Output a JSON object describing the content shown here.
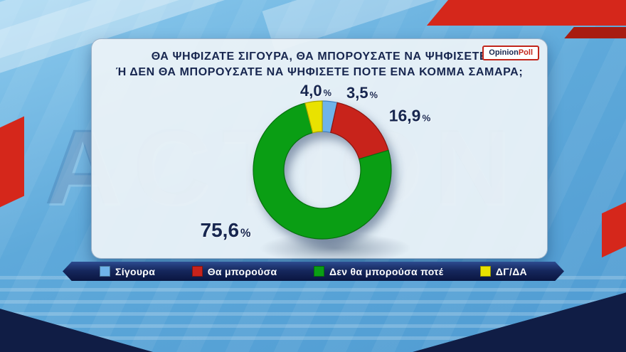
{
  "background": {
    "watermark": "ACTION",
    "base_color": "#5ea9da",
    "accent_red": "#d5271b",
    "accent_navy": "#101d45"
  },
  "panel": {
    "title_line1": "ΘΑ ΨΗΦΙΖΑΤΕ ΣΙΓΟΥΡΑ, ΘΑ ΜΠΟΡΟΥΣΑΤΕ ΝΑ ΨΗΦΙΣΕΤΕ",
    "title_line2": "Ή ΔΕΝ ΘΑ ΜΠΟΡΟΥΣΑΤΕ ΝΑ ΨΗΦΙΣΕΤΕ ΠΟΤΕ ΕΝΑ ΚΟΜΜΑ ΣΑΜΑΡΑ;",
    "logo": {
      "part1": "Opinion",
      "part2": "Poll"
    }
  },
  "chart_data": {
    "type": "pie",
    "subtype": "donut",
    "title": "ΘΑ ΨΗΦΙΖΑΤΕ ΣΙΓΟΥΡΑ, ΘΑ ΜΠΟΡΟΥΣΑΤΕ ΝΑ ΨΗΦΙΣΕΤΕ Ή ΔΕΝ ΘΑ ΜΠΟΡΟΥΣΑΤΕ ΝΑ ΨΗΦΙΣΕΤΕ ΠΟΤΕ ΕΝΑ ΚΟΜΜΑ ΣΑΜΑΡΑ;",
    "start_angle_deg": 0,
    "direction": "clockwise",
    "legend_position": "bottom",
    "slices": [
      {
        "label": "Σίγουρα",
        "value": 3.5,
        "display": "3,5",
        "unit": "%",
        "color": "#6fb3e9",
        "edge": "#3f7fbe"
      },
      {
        "label": "Θα μπορούσα",
        "value": 16.9,
        "display": "16,9",
        "unit": "%",
        "color": "#c8231b",
        "edge": "#8a1510"
      },
      {
        "label": "Δεν θα μπορούσα ποτέ",
        "value": 75.6,
        "display": "75,6",
        "unit": "%",
        "color": "#0a9e14",
        "edge": "#06700d"
      },
      {
        "label": "ΔΓ/ΔΑ",
        "value": 4.0,
        "display": "4,0",
        "unit": "%",
        "color": "#e9e200",
        "edge": "#a9a400"
      }
    ]
  }
}
